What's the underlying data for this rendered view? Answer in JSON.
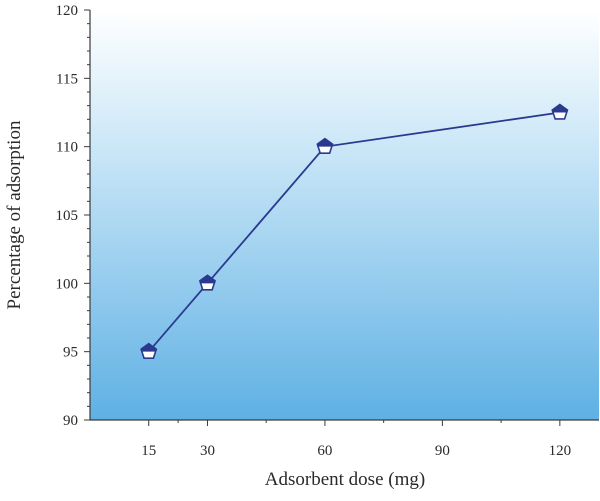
{
  "chart_data": {
    "type": "line",
    "title": "",
    "xlabel": "Adsorbent dose (mg)",
    "ylabel": "Percentage of adsorption",
    "xlim": [
      0,
      130
    ],
    "ylim": [
      90,
      120
    ],
    "x_ticks": [
      15,
      30,
      60,
      90,
      120
    ],
    "y_ticks": [
      90,
      95,
      100,
      105,
      110,
      115,
      120
    ],
    "grid": false,
    "legend": "none",
    "series": [
      {
        "x": [
          15,
          30,
          60,
          120
        ],
        "y": [
          95,
          100,
          110,
          112.5
        ],
        "marker": "pentagon",
        "color": "#2b3a8f"
      }
    ],
    "background_gradient": [
      "#ffffff",
      "#5fb0e4"
    ]
  }
}
